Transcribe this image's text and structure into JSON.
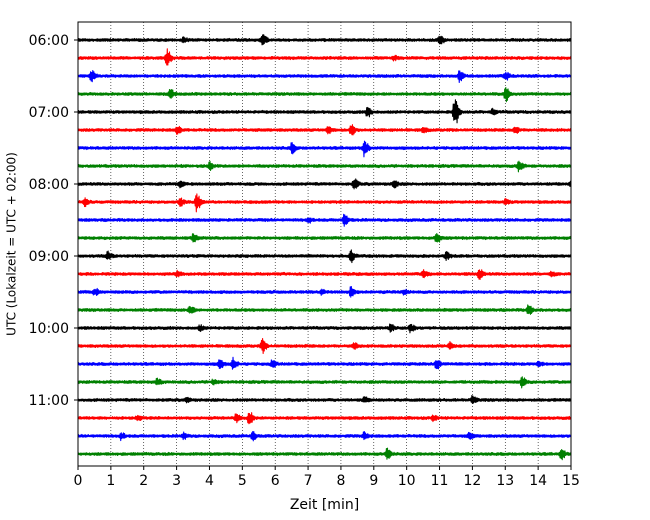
{
  "chart_data": {
    "type": "line",
    "title": "",
    "xlabel": "Zeit  [min]",
    "ylabel": "UTC (Lokalzeit = UTC + 02:00)",
    "xlim": [
      0,
      15
    ],
    "x_ticks": [
      0,
      1,
      2,
      3,
      4,
      5,
      6,
      7,
      8,
      9,
      10,
      11,
      12,
      13,
      14,
      15
    ],
    "y_tick_labels": [
      "06:00",
      "07:00",
      "08:00",
      "09:00",
      "10:00",
      "11:00"
    ],
    "trace_start_utc": "06:00",
    "trace_duration_min": 15,
    "grid": "vertical-dotted",
    "colors": [
      "#000000",
      "#ff0000",
      "#0000ff",
      "#008000"
    ],
    "traces": [
      {
        "start": "06:00",
        "color": "#000000",
        "events": [
          {
            "t": 3.2,
            "a": 0.3
          },
          {
            "t": 5.6,
            "a": 0.8
          },
          {
            "t": 11.0,
            "a": 0.6
          }
        ]
      },
      {
        "start": "06:15",
        "color": "#ff0000",
        "events": [
          {
            "t": 2.7,
            "a": 1.0
          },
          {
            "t": 9.6,
            "a": 0.25
          }
        ]
      },
      {
        "start": "06:30",
        "color": "#0000ff",
        "events": [
          {
            "t": 0.4,
            "a": 0.6
          },
          {
            "t": 11.6,
            "a": 0.7
          },
          {
            "t": 13.0,
            "a": 0.5
          }
        ]
      },
      {
        "start": "06:45",
        "color": "#008000",
        "events": [
          {
            "t": 2.8,
            "a": 0.5
          },
          {
            "t": 13.0,
            "a": 0.9
          }
        ]
      },
      {
        "start": "07:00",
        "color": "#000000",
        "events": [
          {
            "t": 8.8,
            "a": 0.6
          },
          {
            "t": 11.45,
            "a": 1.9
          },
          {
            "t": 12.6,
            "a": 0.3
          }
        ]
      },
      {
        "start": "07:15",
        "color": "#ff0000",
        "events": [
          {
            "t": 3.0,
            "a": 0.5
          },
          {
            "t": 7.6,
            "a": 0.4
          },
          {
            "t": 8.3,
            "a": 0.7
          },
          {
            "t": 10.5,
            "a": 0.3
          },
          {
            "t": 13.3,
            "a": 0.4
          }
        ]
      },
      {
        "start": "07:30",
        "color": "#0000ff",
        "events": [
          {
            "t": 6.5,
            "a": 0.6
          },
          {
            "t": 8.7,
            "a": 1.0
          }
        ]
      },
      {
        "start": "07:45",
        "color": "#008000",
        "events": [
          {
            "t": 4.0,
            "a": 0.4
          },
          {
            "t": 13.4,
            "a": 0.7
          }
        ]
      },
      {
        "start": "08:00",
        "color": "#000000",
        "events": [
          {
            "t": 3.1,
            "a": 0.3
          },
          {
            "t": 8.4,
            "a": 0.6
          },
          {
            "t": 9.6,
            "a": 0.45
          },
          {
            "t": 15.0,
            "a": 0.4
          }
        ]
      },
      {
        "start": "08:15",
        "color": "#ff0000",
        "events": [
          {
            "t": 0.2,
            "a": 0.5
          },
          {
            "t": 3.1,
            "a": 0.4
          },
          {
            "t": 3.6,
            "a": 1.1
          },
          {
            "t": 13.0,
            "a": 0.3
          }
        ]
      },
      {
        "start": "08:30",
        "color": "#0000ff",
        "events": [
          {
            "t": 7.0,
            "a": 0.3
          },
          {
            "t": 8.1,
            "a": 0.7
          }
        ]
      },
      {
        "start": "08:45",
        "color": "#008000",
        "events": [
          {
            "t": 3.5,
            "a": 0.5
          },
          {
            "t": 10.9,
            "a": 0.7
          }
        ]
      },
      {
        "start": "09:00",
        "color": "#000000",
        "events": [
          {
            "t": 0.9,
            "a": 0.5
          },
          {
            "t": 8.3,
            "a": 0.7
          },
          {
            "t": 11.2,
            "a": 0.4
          }
        ]
      },
      {
        "start": "09:15",
        "color": "#ff0000",
        "events": [
          {
            "t": 3.0,
            "a": 0.3
          },
          {
            "t": 10.5,
            "a": 0.5
          },
          {
            "t": 12.2,
            "a": 0.6
          },
          {
            "t": 14.4,
            "a": 0.3
          }
        ]
      },
      {
        "start": "09:30",
        "color": "#0000ff",
        "events": [
          {
            "t": 0.5,
            "a": 0.4
          },
          {
            "t": 7.4,
            "a": 0.35
          },
          {
            "t": 8.3,
            "a": 0.7
          },
          {
            "t": 9.9,
            "a": 0.3
          }
        ]
      },
      {
        "start": "09:45",
        "color": "#008000",
        "events": [
          {
            "t": 3.4,
            "a": 0.5
          },
          {
            "t": 13.7,
            "a": 0.6
          }
        ]
      },
      {
        "start": "10:00",
        "color": "#000000",
        "events": [
          {
            "t": 3.7,
            "a": 0.3
          },
          {
            "t": 9.5,
            "a": 0.4
          },
          {
            "t": 10.1,
            "a": 0.5
          }
        ]
      },
      {
        "start": "10:15",
        "color": "#ff0000",
        "events": [
          {
            "t": 5.6,
            "a": 0.8
          },
          {
            "t": 8.4,
            "a": 0.3
          },
          {
            "t": 11.3,
            "a": 0.4
          }
        ]
      },
      {
        "start": "10:30",
        "color": "#0000ff",
        "events": [
          {
            "t": 4.3,
            "a": 0.6
          },
          {
            "t": 4.7,
            "a": 0.7
          },
          {
            "t": 5.9,
            "a": 0.4
          },
          {
            "t": 10.9,
            "a": 0.6
          },
          {
            "t": 14.0,
            "a": 0.3
          }
        ]
      },
      {
        "start": "10:45",
        "color": "#008000",
        "events": [
          {
            "t": 2.4,
            "a": 0.4
          },
          {
            "t": 4.1,
            "a": 0.3
          },
          {
            "t": 13.5,
            "a": 0.6
          }
        ]
      },
      {
        "start": "11:00",
        "color": "#000000",
        "events": [
          {
            "t": 3.3,
            "a": 0.25
          },
          {
            "t": 8.7,
            "a": 0.3
          },
          {
            "t": 12.0,
            "a": 0.5
          }
        ]
      },
      {
        "start": "11:15",
        "color": "#ff0000",
        "events": [
          {
            "t": 1.8,
            "a": 0.3
          },
          {
            "t": 4.8,
            "a": 0.5
          },
          {
            "t": 5.2,
            "a": 0.8
          },
          {
            "t": 10.8,
            "a": 0.3
          }
        ]
      },
      {
        "start": "11:30",
        "color": "#0000ff",
        "events": [
          {
            "t": 1.3,
            "a": 0.4
          },
          {
            "t": 3.2,
            "a": 0.35
          },
          {
            "t": 5.3,
            "a": 0.5
          },
          {
            "t": 8.7,
            "a": 0.4
          },
          {
            "t": 11.9,
            "a": 0.35
          }
        ]
      },
      {
        "start": "11:45",
        "color": "#008000",
        "events": [
          {
            "t": 9.4,
            "a": 0.7
          },
          {
            "t": 14.7,
            "a": 0.6
          }
        ]
      }
    ]
  }
}
